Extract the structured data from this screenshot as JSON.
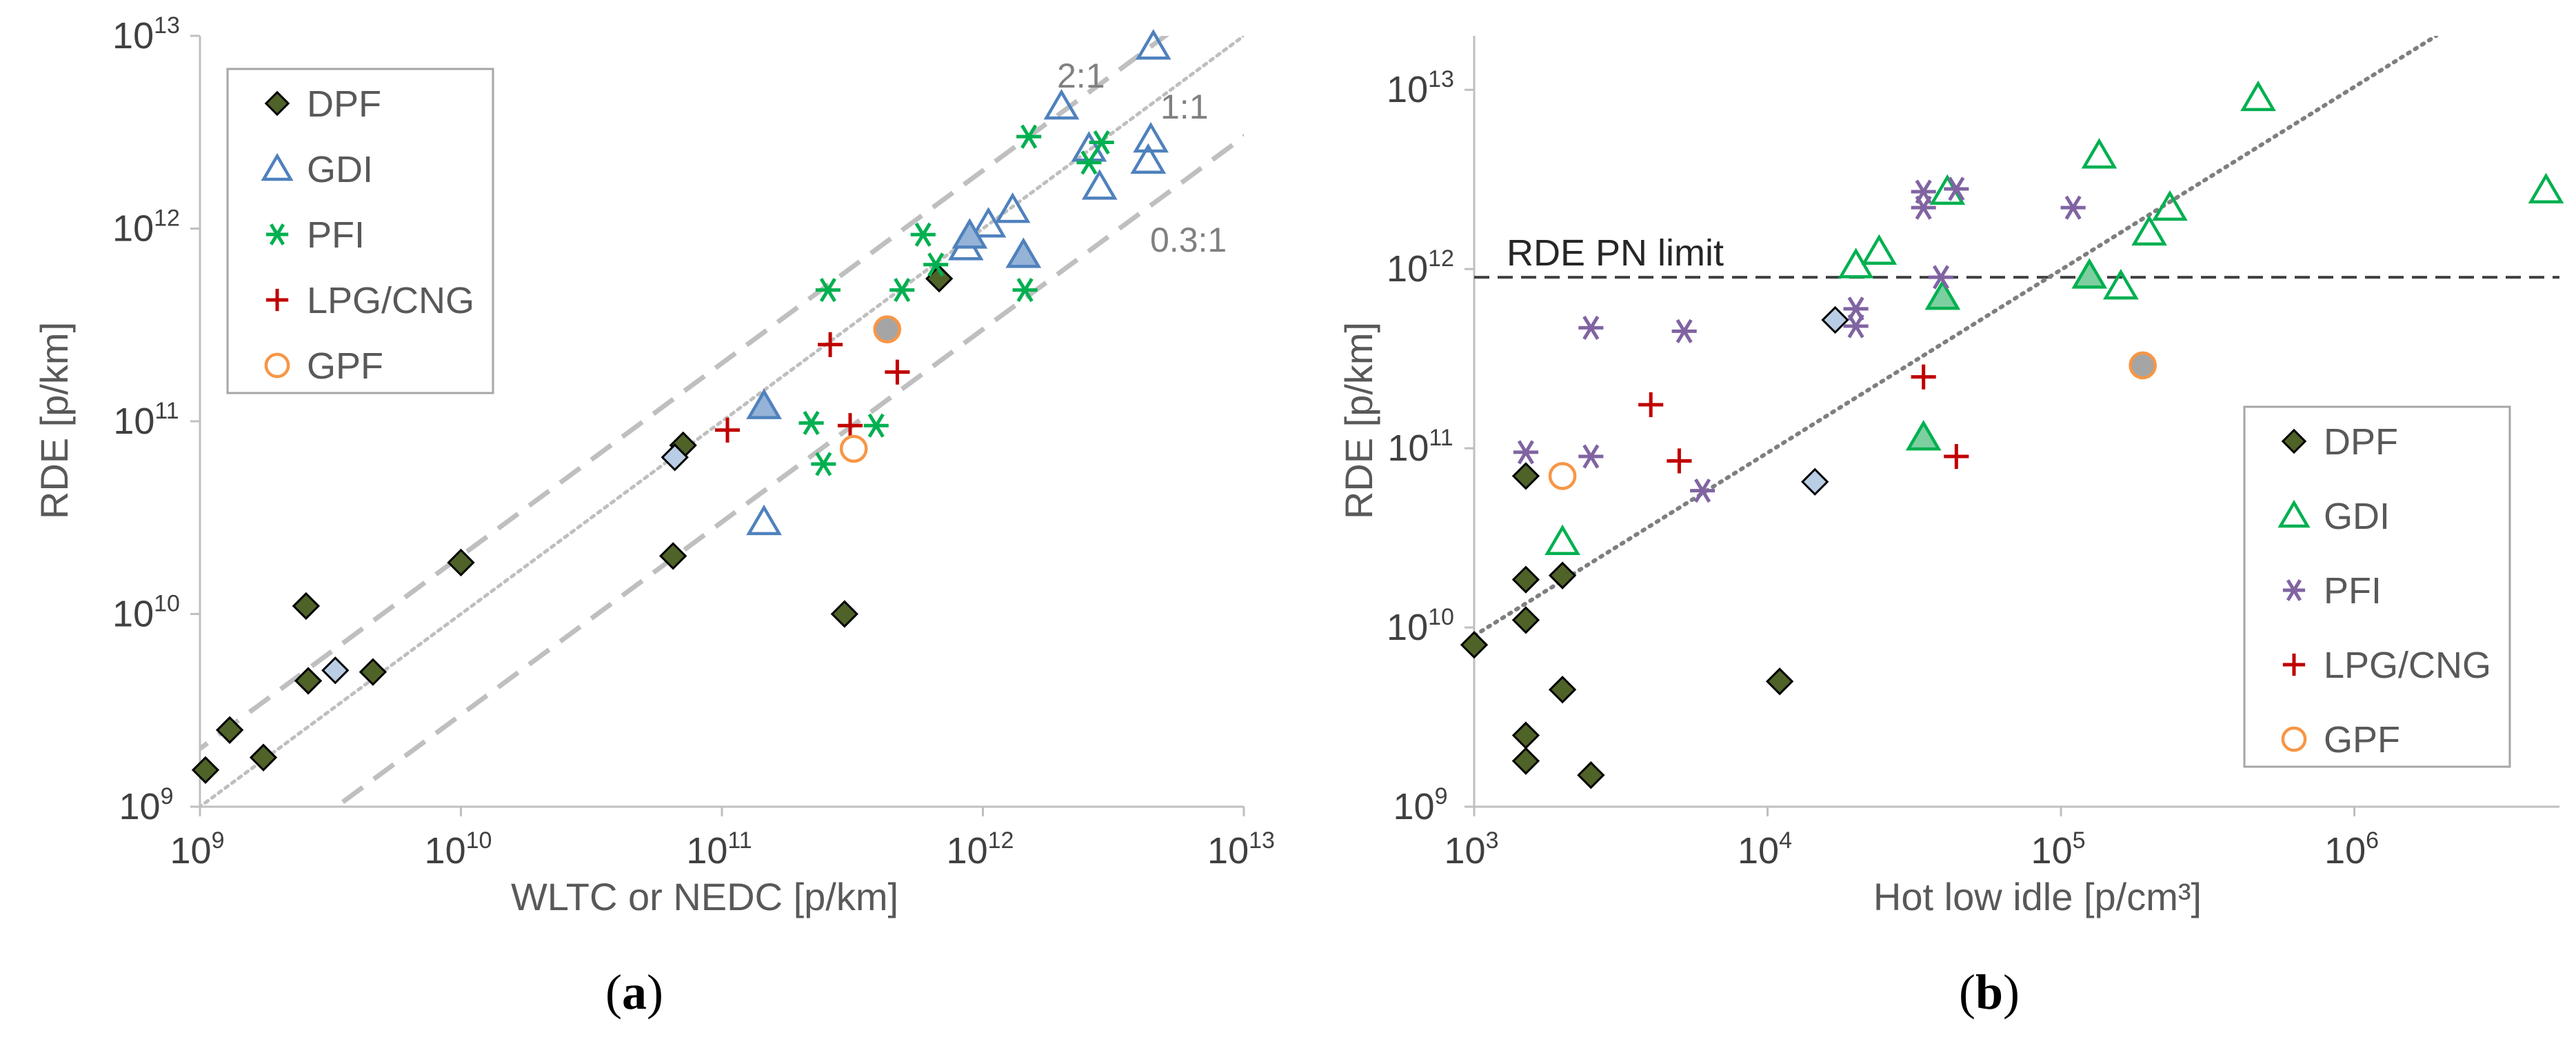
{
  "colors": {
    "dpf_fill": "#4f6228",
    "dpf_light": "#b9cde5",
    "stroke_dark": "#000000",
    "gdi_a": "#4f81bd",
    "gdi_a_fill": "#95b3d7",
    "gdi_b": "#00b050",
    "gdi_b_fill": "#7dcfa0",
    "pfi_a": "#00b050",
    "pfi_b": "#8064a2",
    "lpg": "#c00000",
    "gpf": "#f79646",
    "gpf_fill": "#a5a5a5",
    "ref_dash": "#bfbfbf",
    "ref_dot": "#bfbfbf",
    "trend": "#7f7f7f",
    "limit": "#404040",
    "axis": "#bfbfbf"
  },
  "chart_data": [
    {
      "type": "scatter",
      "panel_label": "a",
      "xlabel": "WLTC or NEDC [p/km]",
      "ylabel": "RDE [p/km]",
      "xscale": "log",
      "yscale": "log",
      "xlim": [
        1000000000.0,
        10000000000000.0
      ],
      "ylim": [
        1000000000.0,
        10000000000000.0
      ],
      "x_ticks": [
        {
          "base": "10",
          "exp": "9",
          "v": 1000000000.0
        },
        {
          "base": "10",
          "exp": "10",
          "v": 10000000000.0
        },
        {
          "base": "10",
          "exp": "11",
          "v": 100000000000.0
        },
        {
          "base": "10",
          "exp": "12",
          "v": 1000000000000.0
        },
        {
          "base": "10",
          "exp": "13",
          "v": 10000000000000.0
        }
      ],
      "y_ticks": [
        {
          "base": "10",
          "exp": "9",
          "v": 1000000000.0
        },
        {
          "base": "10",
          "exp": "10",
          "v": 10000000000.0
        },
        {
          "base": "10",
          "exp": "11",
          "v": 100000000000.0
        },
        {
          "base": "10",
          "exp": "12",
          "v": 1000000000000.0
        },
        {
          "base": "10",
          "exp": "13",
          "v": 10000000000000.0
        }
      ],
      "reference_lines": [
        {
          "label": "2:1",
          "ratio": 2,
          "style": "dashed"
        },
        {
          "label": "1:1",
          "ratio": 1,
          "style": "dotted"
        },
        {
          "label": "0.3:1",
          "ratio": 0.3,
          "style": "dashed"
        }
      ],
      "legend": [
        {
          "label": "DPF",
          "marker": "diamond",
          "key": "DPF"
        },
        {
          "label": "GDI",
          "marker": "triangle",
          "key": "GDI"
        },
        {
          "label": "PFI",
          "marker": "star",
          "key": "PFI"
        },
        {
          "label": "LPG/CNG",
          "marker": "plus",
          "key": "LPG"
        },
        {
          "label": "GPF",
          "marker": "circle",
          "key": "GPF"
        }
      ],
      "series": [
        {
          "name": "DPF",
          "marker": "diamond",
          "points": [
            [
              1050000000.0,
              1550000000.0
            ],
            [
              1300000000.0,
              2500000000.0
            ],
            [
              1750000000.0,
              1800000000.0
            ],
            [
              2550000000.0,
              11000000000.0
            ],
            [
              2600000000.0,
              4500000000.0
            ],
            [
              4600000000.0,
              5000000000.0
            ],
            [
              10000000000.0,
              18500000000.0
            ],
            [
              65000000000.0,
              20000000000.0
            ],
            [
              71000000000.0,
              75000000000.0
            ],
            [
              295000000000.0,
              10000000000.0
            ],
            [
              680000000000.0,
              550000000000.0
            ]
          ]
        },
        {
          "name": "DPF (filled light)",
          "marker": "diamond-light",
          "points": [
            [
              3300000000.0,
              5100000000.0
            ],
            [
              66000000000.0,
              65000000000.0
            ]
          ]
        },
        {
          "name": "GDI",
          "marker": "triangle",
          "points": [
            [
              145000000000.0,
              30000000000.0
            ],
            [
              860000000000.0,
              800000000000.0
            ],
            [
              1050000000000.0,
              1050000000000.0
            ],
            [
              1300000000000.0,
              1250000000000.0
            ],
            [
              2000000000000.0,
              4300000000000.0
            ],
            [
              2550000000000.0,
              2600000000000.0
            ],
            [
              2800000000000.0,
              1650000000000.0
            ],
            [
              4300000000000.0,
              2250000000000.0
            ],
            [
              4400000000000.0,
              2900000000000.0
            ],
            [
              4500000000000.0,
              8800000000000.0
            ]
          ]
        },
        {
          "name": "GDI (filled)",
          "marker": "triangle-fill",
          "points": [
            [
              145000000000.0,
              120000000000.0
            ],
            [
              890000000000.0,
              920000000000.0
            ],
            [
              1430000000000.0,
              730000000000.0
            ]
          ]
        },
        {
          "name": "PFI",
          "marker": "star",
          "points": [
            [
              220000000000.0,
              98000000000.0
            ],
            [
              245000000000.0,
              60000000000.0
            ],
            [
              255000000000.0,
              480000000000.0
            ],
            [
              390000000000.0,
              95000000000.0
            ],
            [
              490000000000.0,
              480000000000.0
            ],
            [
              590000000000.0,
              930000000000.0
            ],
            [
              660000000000.0,
              650000000000.0
            ],
            [
              1450000000000.0,
              480000000000.0
            ],
            [
              1500000000000.0,
              3000000000000.0
            ],
            [
              2550000000000.0,
              2200000000000.0
            ],
            [
              2850000000000.0,
              2800000000000.0
            ]
          ]
        },
        {
          "name": "LPG/CNG",
          "marker": "plus",
          "points": [
            [
              105000000000.0,
              90000000000.0
            ],
            [
              260000000000.0,
              250000000000.0
            ],
            [
              310000000000.0,
              95000000000.0
            ],
            [
              470000000000.0,
              180000000000.0
            ]
          ]
        },
        {
          "name": "GPF",
          "marker": "circle",
          "points": [
            [
              320000000000.0,
              72000000000.0
            ]
          ]
        },
        {
          "name": "GPF (filled)",
          "marker": "circle-fill",
          "points": [
            [
              430000000000.0,
              300000000000.0
            ]
          ]
        }
      ]
    },
    {
      "type": "scatter",
      "panel_label": "b",
      "xlabel": "Hot low idle [p/cm³]",
      "ylabel": "RDE [p/km]",
      "xscale": "log",
      "yscale": "log",
      "xlim": [
        1000.0,
        5000000.0
      ],
      "ylim": [
        1000000000.0,
        20000000000000.0
      ],
      "x_ticks": [
        {
          "base": "10",
          "exp": "3",
          "v": 1000.0
        },
        {
          "base": "10",
          "exp": "4",
          "v": 10000.0
        },
        {
          "base": "10",
          "exp": "5",
          "v": 100000.0
        },
        {
          "base": "10",
          "exp": "6",
          "v": 1000000.0
        }
      ],
      "y_ticks": [
        {
          "base": "10",
          "exp": "9",
          "v": 1000000000.0
        },
        {
          "base": "10",
          "exp": "10",
          "v": 10000000000.0
        },
        {
          "base": "10",
          "exp": "11",
          "v": 100000000000.0
        },
        {
          "base": "10",
          "exp": "12",
          "v": 1000000000000.0
        },
        {
          "base": "10",
          "exp": "13",
          "v": 10000000000000.0
        }
      ],
      "limit_line": {
        "label": "RDE PN limit",
        "value": 900000000000.0
      },
      "trend_line": {
        "points": [
          [
            1000.0,
            9000000000.0
          ],
          [
            1900000.0,
            20000000000000.0
          ]
        ]
      },
      "legend": [
        {
          "label": "DPF",
          "marker": "diamond",
          "key": "DPF"
        },
        {
          "label": "GDI",
          "marker": "triangle",
          "key": "GDI"
        },
        {
          "label": "PFI",
          "marker": "star",
          "key": "PFI"
        },
        {
          "label": "LPG/CNG",
          "marker": "plus",
          "key": "LPG"
        },
        {
          "label": "GPF",
          "marker": "circle",
          "key": "GPF"
        }
      ],
      "series": [
        {
          "name": "DPF",
          "marker": "diamond",
          "points": [
            [
              1000.0,
              8000000000.0
            ],
            [
              1500.0,
              70000000000.0
            ],
            [
              1500.0,
              18500000000.0
            ],
            [
              1500.0,
              11000000000.0
            ],
            [
              1500.0,
              2500000000.0
            ],
            [
              1500.0,
              1800000000.0
            ],
            [
              2000.0,
              19500000000.0
            ],
            [
              2000.0,
              4500000000.0
            ],
            [
              2500.0,
              1500000000.0
            ],
            [
              11000.0,
              5000000000.0
            ]
          ]
        },
        {
          "name": "DPF (filled light)",
          "marker": "diamond-light",
          "points": [
            [
              14500.0,
              65000000000.0
            ],
            [
              17000.0,
              520000000000.0
            ]
          ]
        },
        {
          "name": "GDI",
          "marker": "triangle",
          "points": [
            [
              2000.0,
              30000000000.0
            ],
            [
              20000.0,
              1050000000000.0
            ],
            [
              24000.0,
              1250000000000.0
            ],
            [
              41000.0,
              2700000000000.0
            ],
            [
              135000.0,
              4300000000000.0
            ],
            [
              160000.0,
              800000000000.0
            ],
            [
              200000.0,
              1600000000000.0
            ],
            [
              235000.0,
              2200000000000.0
            ],
            [
              470000.0,
              9000000000000.0
            ],
            [
              4500000.0,
              2750000000000.0
            ]
          ]
        },
        {
          "name": "GDI (filled)",
          "marker": "triangle-fill",
          "points": [
            [
              34000.0,
              115000000000.0
            ],
            [
              39500.0,
              700000000000.0
            ],
            [
              125000.0,
              920000000000.0
            ]
          ]
        },
        {
          "name": "PFI",
          "marker": "star",
          "points": [
            [
              1500.0,
              95000000000.0
            ],
            [
              2500.0,
              470000000000.0
            ],
            [
              2500.0,
              90000000000.0
            ],
            [
              5200.0,
              450000000000.0
            ],
            [
              6000.0,
              58000000000.0
            ],
            [
              20000.0,
              480000000000.0
            ],
            [
              20000.0,
              600000000000.0
            ],
            [
              34000.0,
              2200000000000.0
            ],
            [
              34000.0,
              2700000000000.0
            ],
            [
              39000.0,
              900000000000.0
            ],
            [
              44000.0,
              2800000000000.0
            ],
            [
              110000.0,
              2200000000000.0
            ]
          ]
        },
        {
          "name": "LPG/CNG",
          "marker": "plus",
          "points": [
            [
              4000.0,
              175000000000.0
            ],
            [
              5000.0,
              85000000000.0
            ],
            [
              34000.0,
              250000000000.0
            ],
            [
              44000.0,
              90000000000.0
            ]
          ]
        },
        {
          "name": "GPF",
          "marker": "circle",
          "points": [
            [
              2000.0,
              70000000000.0
            ]
          ]
        },
        {
          "name": "GPF (filled)",
          "marker": "circle-fill",
          "points": [
            [
              190000.0,
              290000000000.0
            ]
          ]
        }
      ]
    }
  ]
}
